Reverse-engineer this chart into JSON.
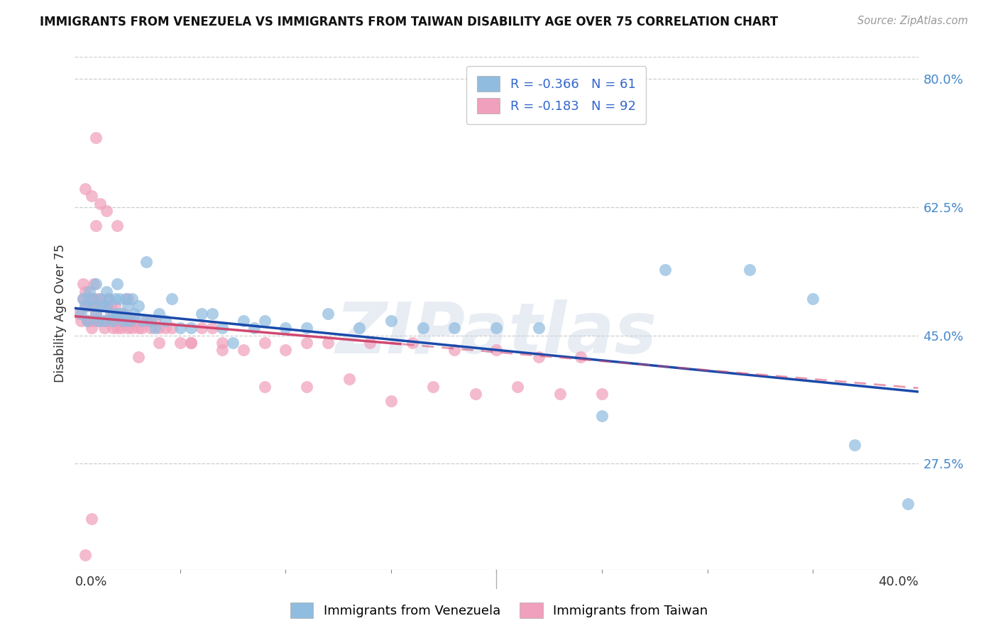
{
  "title": "IMMIGRANTS FROM VENEZUELA VS IMMIGRANTS FROM TAIWAN DISABILITY AGE OVER 75 CORRELATION CHART",
  "source": "Source: ZipAtlas.com",
  "ylabel": "Disability Age Over 75",
  "y_ticks_right": [
    0.275,
    0.45,
    0.625,
    0.8
  ],
  "y_tick_labels_right": [
    "27.5%",
    "45.0%",
    "62.5%",
    "80.0%"
  ],
  "x_range": [
    0.0,
    0.4
  ],
  "y_range": [
    0.13,
    0.83
  ],
  "legend_r_blue": "R = -0.366",
  "legend_n_blue": "N = 61",
  "legend_r_pink": "R = -0.183",
  "legend_n_pink": "N = 92",
  "legend_label_blue": "Immigrants from Venezuela",
  "legend_label_pink": "Immigrants from Taiwan",
  "blue_color": "#90bce0",
  "pink_color": "#f0a0bc",
  "blue_line_color": "#1a4aaa",
  "pink_line_color": "#d04870",
  "watermark": "ZIPatlas",
  "background_color": "#ffffff",
  "grid_color": "#c8c8c8",
  "blue_scatter_x": [
    0.003,
    0.004,
    0.005,
    0.006,
    0.007,
    0.008,
    0.009,
    0.01,
    0.01,
    0.011,
    0.012,
    0.013,
    0.014,
    0.015,
    0.015,
    0.016,
    0.017,
    0.018,
    0.019,
    0.02,
    0.02,
    0.021,
    0.022,
    0.023,
    0.024,
    0.025,
    0.026,
    0.027,
    0.028,
    0.03,
    0.032,
    0.034,
    0.036,
    0.038,
    0.04,
    0.043,
    0.046,
    0.05,
    0.055,
    0.06,
    0.065,
    0.07,
    0.075,
    0.08,
    0.085,
    0.09,
    0.1,
    0.11,
    0.12,
    0.135,
    0.15,
    0.165,
    0.18,
    0.2,
    0.22,
    0.25,
    0.28,
    0.32,
    0.35,
    0.37,
    0.395
  ],
  "blue_scatter_y": [
    0.48,
    0.5,
    0.49,
    0.47,
    0.51,
    0.5,
    0.49,
    0.48,
    0.52,
    0.47,
    0.5,
    0.49,
    0.47,
    0.51,
    0.49,
    0.5,
    0.48,
    0.47,
    0.5,
    0.48,
    0.52,
    0.5,
    0.48,
    0.47,
    0.5,
    0.49,
    0.47,
    0.5,
    0.48,
    0.49,
    0.47,
    0.55,
    0.47,
    0.46,
    0.48,
    0.47,
    0.5,
    0.46,
    0.46,
    0.48,
    0.48,
    0.46,
    0.44,
    0.47,
    0.46,
    0.47,
    0.46,
    0.46,
    0.48,
    0.46,
    0.47,
    0.46,
    0.46,
    0.46,
    0.46,
    0.34,
    0.54,
    0.54,
    0.5,
    0.3,
    0.22
  ],
  "pink_scatter_x": [
    0.002,
    0.003,
    0.004,
    0.004,
    0.005,
    0.005,
    0.006,
    0.006,
    0.007,
    0.007,
    0.008,
    0.008,
    0.009,
    0.009,
    0.009,
    0.01,
    0.01,
    0.01,
    0.011,
    0.011,
    0.012,
    0.012,
    0.013,
    0.013,
    0.014,
    0.014,
    0.015,
    0.015,
    0.016,
    0.016,
    0.017,
    0.017,
    0.018,
    0.018,
    0.019,
    0.019,
    0.02,
    0.02,
    0.021,
    0.022,
    0.023,
    0.024,
    0.025,
    0.026,
    0.027,
    0.028,
    0.03,
    0.032,
    0.034,
    0.036,
    0.038,
    0.04,
    0.043,
    0.046,
    0.05,
    0.055,
    0.06,
    0.065,
    0.07,
    0.08,
    0.09,
    0.1,
    0.11,
    0.12,
    0.14,
    0.16,
    0.18,
    0.2,
    0.22,
    0.24,
    0.005,
    0.008,
    0.01,
    0.012,
    0.015,
    0.02,
    0.025,
    0.03,
    0.04,
    0.055,
    0.07,
    0.09,
    0.11,
    0.13,
    0.15,
    0.17,
    0.19,
    0.21,
    0.23,
    0.25,
    0.005,
    0.008
  ],
  "pink_scatter_y": [
    0.48,
    0.47,
    0.5,
    0.52,
    0.49,
    0.51,
    0.47,
    0.49,
    0.47,
    0.5,
    0.46,
    0.49,
    0.47,
    0.5,
    0.52,
    0.48,
    0.5,
    0.6,
    0.47,
    0.49,
    0.47,
    0.5,
    0.47,
    0.49,
    0.46,
    0.49,
    0.47,
    0.49,
    0.47,
    0.5,
    0.47,
    0.49,
    0.46,
    0.48,
    0.47,
    0.49,
    0.46,
    0.48,
    0.47,
    0.46,
    0.48,
    0.47,
    0.46,
    0.47,
    0.46,
    0.47,
    0.46,
    0.46,
    0.47,
    0.46,
    0.47,
    0.44,
    0.46,
    0.46,
    0.44,
    0.44,
    0.46,
    0.46,
    0.44,
    0.43,
    0.44,
    0.43,
    0.44,
    0.44,
    0.44,
    0.44,
    0.43,
    0.43,
    0.42,
    0.42,
    0.65,
    0.64,
    0.72,
    0.63,
    0.62,
    0.6,
    0.5,
    0.42,
    0.46,
    0.44,
    0.43,
    0.38,
    0.38,
    0.39,
    0.36,
    0.38,
    0.37,
    0.38,
    0.37,
    0.37,
    0.15,
    0.2
  ]
}
